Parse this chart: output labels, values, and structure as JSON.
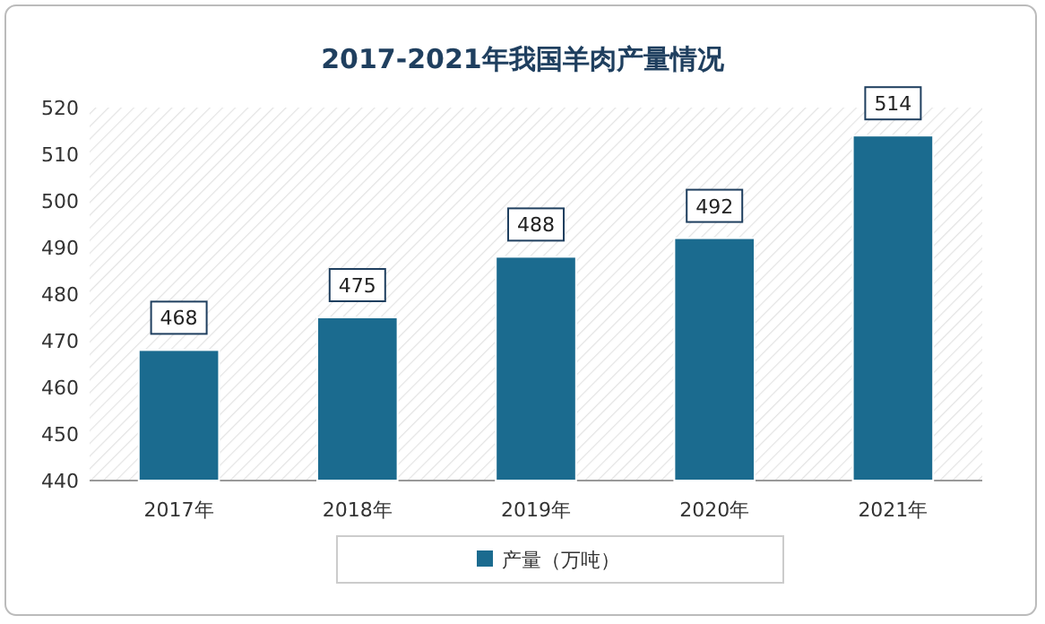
{
  "chart_data": {
    "type": "bar",
    "title": "2017-2021年我国羊肉产量情况",
    "categories": [
      "2017年",
      "2018年",
      "2019年",
      "2020年",
      "2021年"
    ],
    "series": [
      {
        "name": "产量（万吨）",
        "color": "#1b6b8f",
        "values": [
          468,
          475,
          488,
          492,
          514
        ]
      }
    ],
    "ylim": [
      440,
      520
    ],
    "yticks": [
      440,
      450,
      460,
      470,
      480,
      490,
      500,
      510,
      520
    ],
    "data_labels": true,
    "legend": "bottom"
  }
}
